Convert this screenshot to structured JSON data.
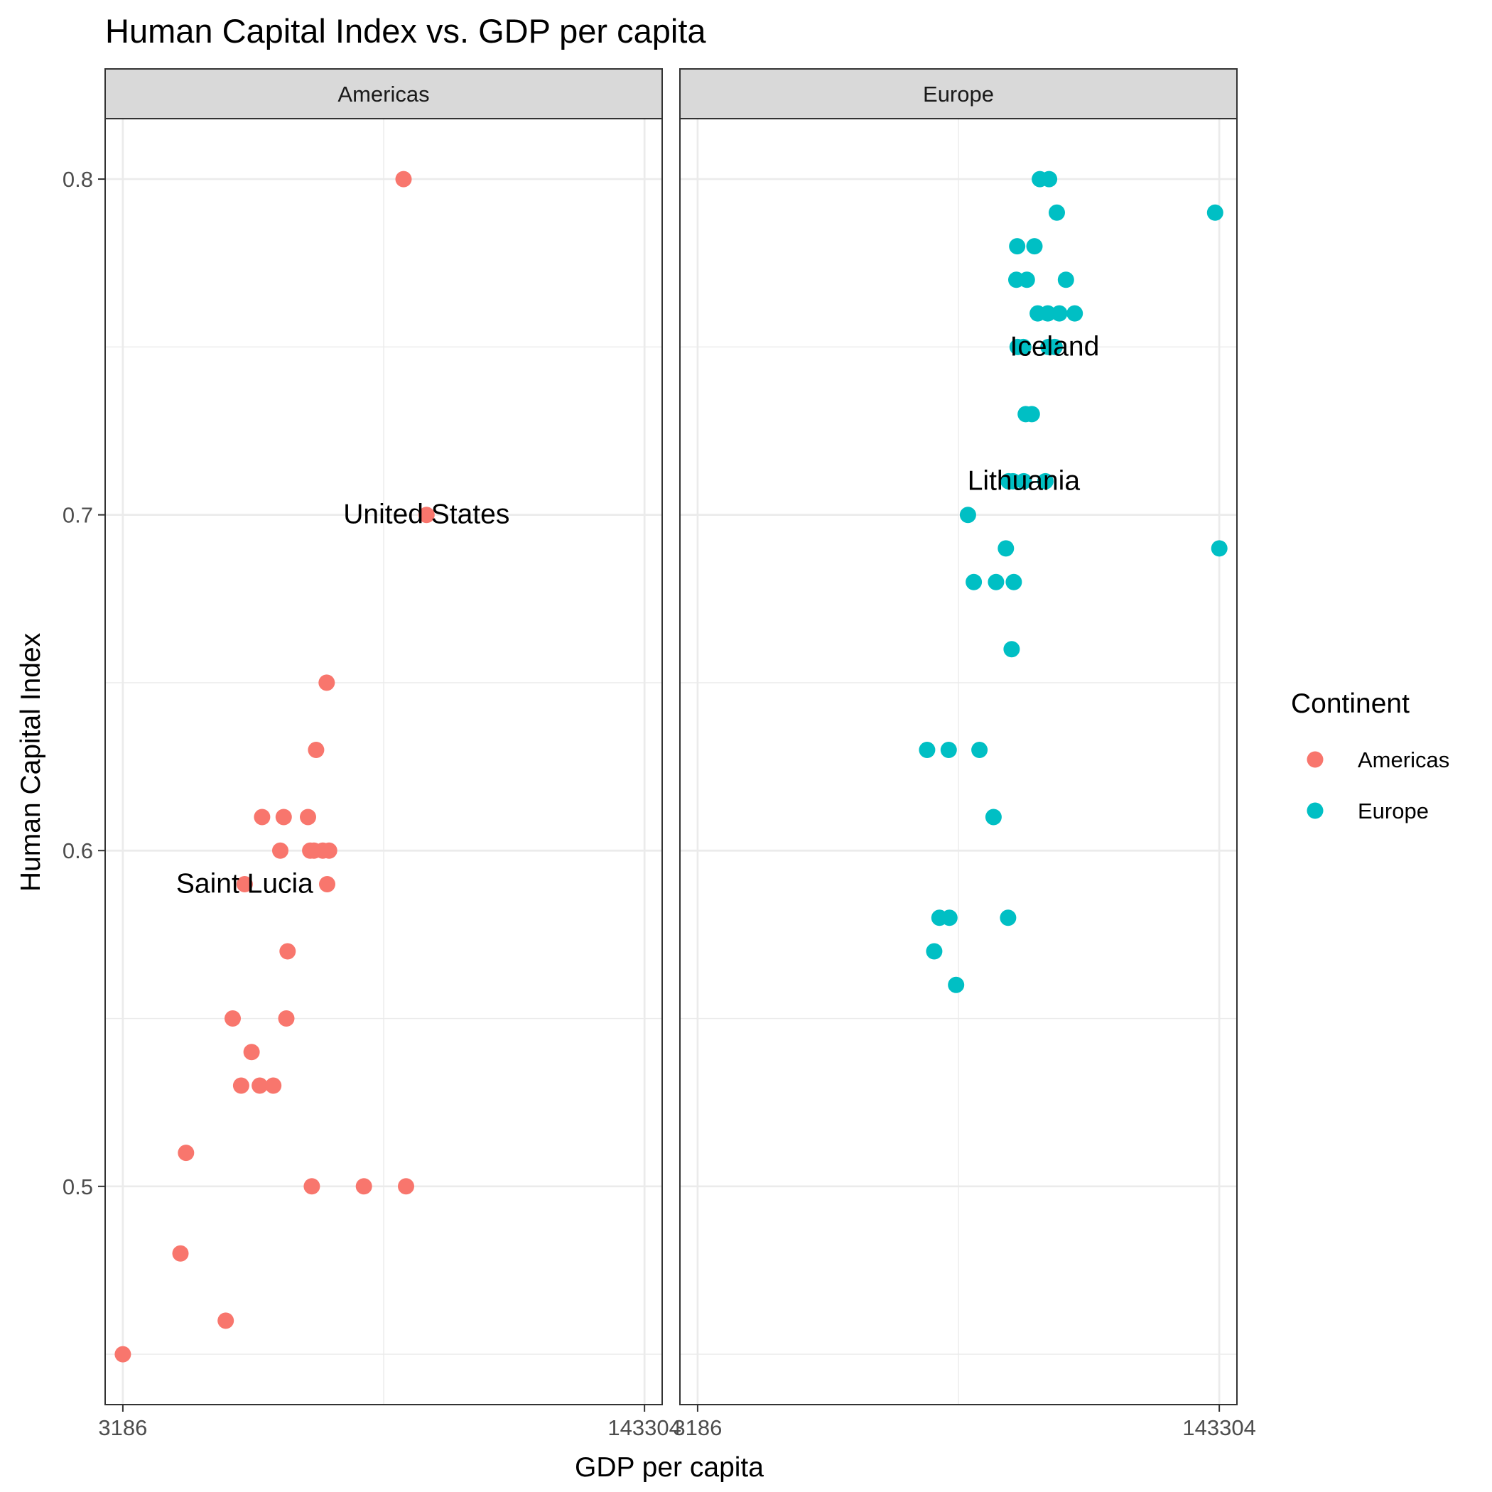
{
  "chart_data": {
    "type": "scatter",
    "title": "Human Capital Index vs. GDP per capita",
    "xlabel": "GDP per capita",
    "ylabel": "Human Capital Index",
    "x_scale": "log",
    "x_ticks": [
      "3186",
      "143304"
    ],
    "x_tick_values": [
      3186,
      143304
    ],
    "xlim": [
      2800,
      163000
    ],
    "y_ticks": [
      "0.5",
      "0.6",
      "0.7",
      "0.8"
    ],
    "y_tick_values": [
      0.5,
      0.6,
      0.7,
      0.8
    ],
    "ylim": [
      0.435,
      0.818
    ],
    "grid": true,
    "legend": {
      "title": "Continent",
      "position": "right",
      "entries": [
        {
          "label": "Americas",
          "color": "#F8766D"
        },
        {
          "label": "Europe",
          "color": "#00BFC4"
        }
      ]
    },
    "facets": [
      {
        "label": "Americas",
        "color": "#F8766D",
        "points": [
          {
            "x": 3186,
            "y": 0.45
          },
          {
            "x": 4850,
            "y": 0.48
          },
          {
            "x": 5050,
            "y": 0.51
          },
          {
            "x": 6750,
            "y": 0.46
          },
          {
            "x": 7100,
            "y": 0.55
          },
          {
            "x": 7550,
            "y": 0.53
          },
          {
            "x": 7750,
            "y": 0.59
          },
          {
            "x": 8150,
            "y": 0.54
          },
          {
            "x": 8650,
            "y": 0.53
          },
          {
            "x": 8800,
            "y": 0.61
          },
          {
            "x": 9550,
            "y": 0.53
          },
          {
            "x": 10050,
            "y": 0.6
          },
          {
            "x": 10300,
            "y": 0.61
          },
          {
            "x": 10500,
            "y": 0.55
          },
          {
            "x": 10600,
            "y": 0.57
          },
          {
            "x": 12300,
            "y": 0.61
          },
          {
            "x": 12500,
            "y": 0.6
          },
          {
            "x": 12650,
            "y": 0.5
          },
          {
            "x": 12850,
            "y": 0.6
          },
          {
            "x": 13050,
            "y": 0.63
          },
          {
            "x": 13700,
            "y": 0.6
          },
          {
            "x": 14100,
            "y": 0.65
          },
          {
            "x": 14150,
            "y": 0.59
          },
          {
            "x": 14350,
            "y": 0.6
          },
          {
            "x": 18500,
            "y": 0.5
          },
          {
            "x": 24700,
            "y": 0.8
          },
          {
            "x": 25150,
            "y": 0.5
          },
          {
            "x": 29200,
            "y": 0.7
          }
        ],
        "annotations": [
          {
            "text": "United States",
            "x": 29200,
            "y": 0.7
          },
          {
            "text": "Saint Lucia",
            "x": 7750,
            "y": 0.59
          }
        ]
      },
      {
        "label": "Europe",
        "color": "#00BFC4",
        "points": [
          {
            "x": 17000,
            "y": 0.63
          },
          {
            "x": 17900,
            "y": 0.57
          },
          {
            "x": 18600,
            "y": 0.58
          },
          {
            "x": 19900,
            "y": 0.63
          },
          {
            "x": 20000,
            "y": 0.58
          },
          {
            "x": 21000,
            "y": 0.56
          },
          {
            "x": 22900,
            "y": 0.7
          },
          {
            "x": 23900,
            "y": 0.68
          },
          {
            "x": 24900,
            "y": 0.63
          },
          {
            "x": 27600,
            "y": 0.61
          },
          {
            "x": 28100,
            "y": 0.68
          },
          {
            "x": 30200,
            "y": 0.69
          },
          {
            "x": 30700,
            "y": 0.58
          },
          {
            "x": 30800,
            "y": 0.71
          },
          {
            "x": 31500,
            "y": 0.66
          },
          {
            "x": 31800,
            "y": 0.71
          },
          {
            "x": 32000,
            "y": 0.68
          },
          {
            "x": 32600,
            "y": 0.77
          },
          {
            "x": 32800,
            "y": 0.78
          },
          {
            "x": 32900,
            "y": 0.75
          },
          {
            "x": 34300,
            "y": 0.75
          },
          {
            "x": 34400,
            "y": 0.71
          },
          {
            "x": 34900,
            "y": 0.73
          },
          {
            "x": 35200,
            "y": 0.77
          },
          {
            "x": 36500,
            "y": 0.73
          },
          {
            "x": 37200,
            "y": 0.78
          },
          {
            "x": 38100,
            "y": 0.76
          },
          {
            "x": 38700,
            "y": 0.8
          },
          {
            "x": 40300,
            "y": 0.71
          },
          {
            "x": 41000,
            "y": 0.76
          },
          {
            "x": 41200,
            "y": 0.75
          },
          {
            "x": 41400,
            "y": 0.8
          },
          {
            "x": 43100,
            "y": 0.75
          },
          {
            "x": 43800,
            "y": 0.79
          },
          {
            "x": 44600,
            "y": 0.76
          },
          {
            "x": 46800,
            "y": 0.77
          },
          {
            "x": 49900,
            "y": 0.76
          },
          {
            "x": 139000,
            "y": 0.79
          },
          {
            "x": 143304,
            "y": 0.69
          }
        ],
        "annotations": [
          {
            "text": "Iceland",
            "x": 43100,
            "y": 0.75
          },
          {
            "text": "Lithuania",
            "x": 34400,
            "y": 0.71
          }
        ]
      }
    ]
  }
}
